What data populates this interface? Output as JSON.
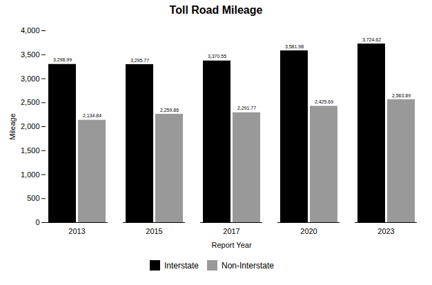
{
  "chart_data": {
    "type": "bar",
    "title": "Toll Road Mileage",
    "xlabel": "Report Year",
    "ylabel": "Mileage",
    "categories": [
      "2013",
      "2015",
      "2017",
      "2020",
      "2023"
    ],
    "series": [
      {
        "name": "Interstate",
        "color": "#000000",
        "values": [
          3298.99,
          3295.77,
          3370.55,
          3581.98,
          3724.62
        ],
        "value_labels": [
          "3,298.99",
          "3,295.77",
          "3,370.55",
          "3,581.98",
          "3,724.62"
        ]
      },
      {
        "name": "Non-Interstate",
        "color": "#999999",
        "values": [
          2134.84,
          2259.86,
          2291.77,
          2425.69,
          2563.89
        ],
        "value_labels": [
          "2,134.84",
          "2,259.86",
          "2,291.77",
          "2,425.69",
          "2,563.89"
        ]
      }
    ],
    "ylim": [
      0,
      4000
    ],
    "yticks": [
      0,
      500,
      1000,
      1500,
      2000,
      2500,
      3000,
      3500,
      4000
    ],
    "grid": false,
    "legend": "bottom",
    "data_labels": true
  }
}
